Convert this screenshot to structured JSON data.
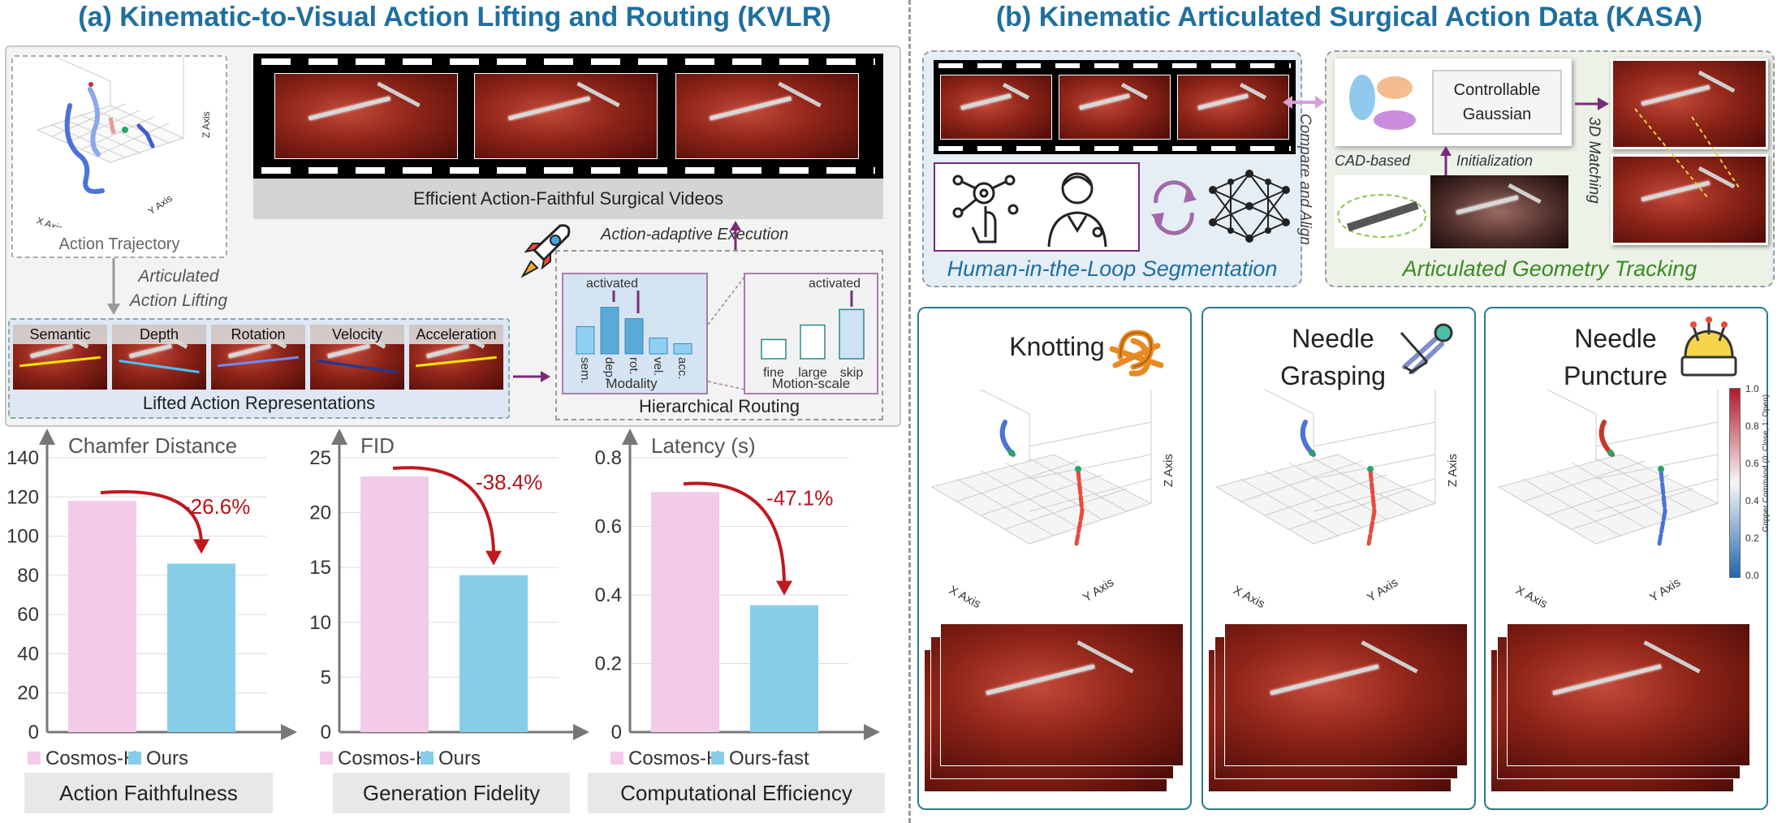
{
  "section_a": {
    "title": "(a) Kinematic-to-Visual Action Lifting and Routing (KVLR)",
    "action_trajectory": "Action Trajectory",
    "traj_axes": {
      "x": "X Axis",
      "y": "Y Axis",
      "z": "Z Axis"
    },
    "lifting_label": "Articulated\nAction Lifting",
    "videos_label": "Efficient Action-Faithful Surgical Videos",
    "execution_label": "Action-adaptive Execution",
    "representations": [
      "Semantic",
      "Depth",
      "Rotation",
      "Velocity",
      "Acceleration"
    ],
    "representations_label": "Lifted Action Representations",
    "routing": {
      "modality_bars": [
        "sem.",
        "dep.",
        "rot.",
        "vel.",
        "acc."
      ],
      "modality_activated": "activated",
      "modality_label": "Modality",
      "motion_bars": [
        "fine",
        "large",
        "skip"
      ],
      "motion_activated": "activated",
      "motion_label": "Motion-scale",
      "title": "Hierarchical Routing"
    }
  },
  "section_b": {
    "title": "(b) Kinematic Articulated Surgical Action Data (KASA)",
    "hil_label": "Human-in-the-Loop Segmentation",
    "compare_label": "Compare and Align",
    "gaussian_label": "Controllable\nGaussian",
    "cad_label": "CAD-based",
    "init_label": "Initialization",
    "matching_label": "3D Matching",
    "tracking_label": "Articulated Geometry Tracking",
    "tasks": [
      {
        "name": "Knotting",
        "name2": ""
      },
      {
        "name": "Needle",
        "name2": "Grasping"
      },
      {
        "name": "Needle",
        "name2": "Puncture"
      }
    ],
    "plot_axes": {
      "x": "X Axis",
      "y": "Y Axis",
      "z": "Z Axis"
    },
    "colorbar": {
      "label": "Gripper Command (0: Close, 1: Open)",
      "ticks": [
        "1.0",
        "0.8",
        "0.6",
        "0.4",
        "0.2",
        "0.0"
      ],
      "high": "#b2182b",
      "mid": "#f7f7f7",
      "low": "#2166ac"
    }
  },
  "chart_data": [
    {
      "type": "bar",
      "title": "Chamfer Distance",
      "subtitle": "Action  Faithfulness",
      "categories": [
        "Cosmos-H",
        "Ours"
      ],
      "values": [
        118,
        86
      ],
      "ylim": [
        0,
        140
      ],
      "yticks": [
        "0",
        "20",
        "40",
        "60",
        "80",
        "100",
        "120",
        "140"
      ],
      "annotation": "-26.6%",
      "colors": [
        "#f2cbe8",
        "#86cdea"
      ]
    },
    {
      "type": "bar",
      "title": "FID",
      "subtitle": "Generation Fidelity",
      "categories": [
        "Cosmos-H",
        "Ours"
      ],
      "values": [
        23.3,
        14.3
      ],
      "ylim": [
        0,
        25
      ],
      "yticks": [
        "0",
        "5",
        "10",
        "15",
        "20",
        "25"
      ],
      "annotation": "-38.4%",
      "colors": [
        "#f2cbe8",
        "#86cdea"
      ]
    },
    {
      "type": "bar",
      "title": "Latency (s)",
      "subtitle": "Computational Efficiency",
      "categories": [
        "Cosmos-H",
        "Ours-fast"
      ],
      "values": [
        0.7,
        0.37
      ],
      "ylim": [
        0,
        0.8
      ],
      "yticks": [
        "0",
        "0.2",
        "0.4",
        "0.6",
        "0.8"
      ],
      "annotation": "-47.1%",
      "colors": [
        "#f2cbe8",
        "#86cdea"
      ]
    }
  ],
  "colors": {
    "title_blue": "#1f6f9f",
    "purple": "#7a2a7a",
    "green_text": "#3a8a22",
    "red_annotation": "#b0141a",
    "teal": "#2b7a8b"
  }
}
